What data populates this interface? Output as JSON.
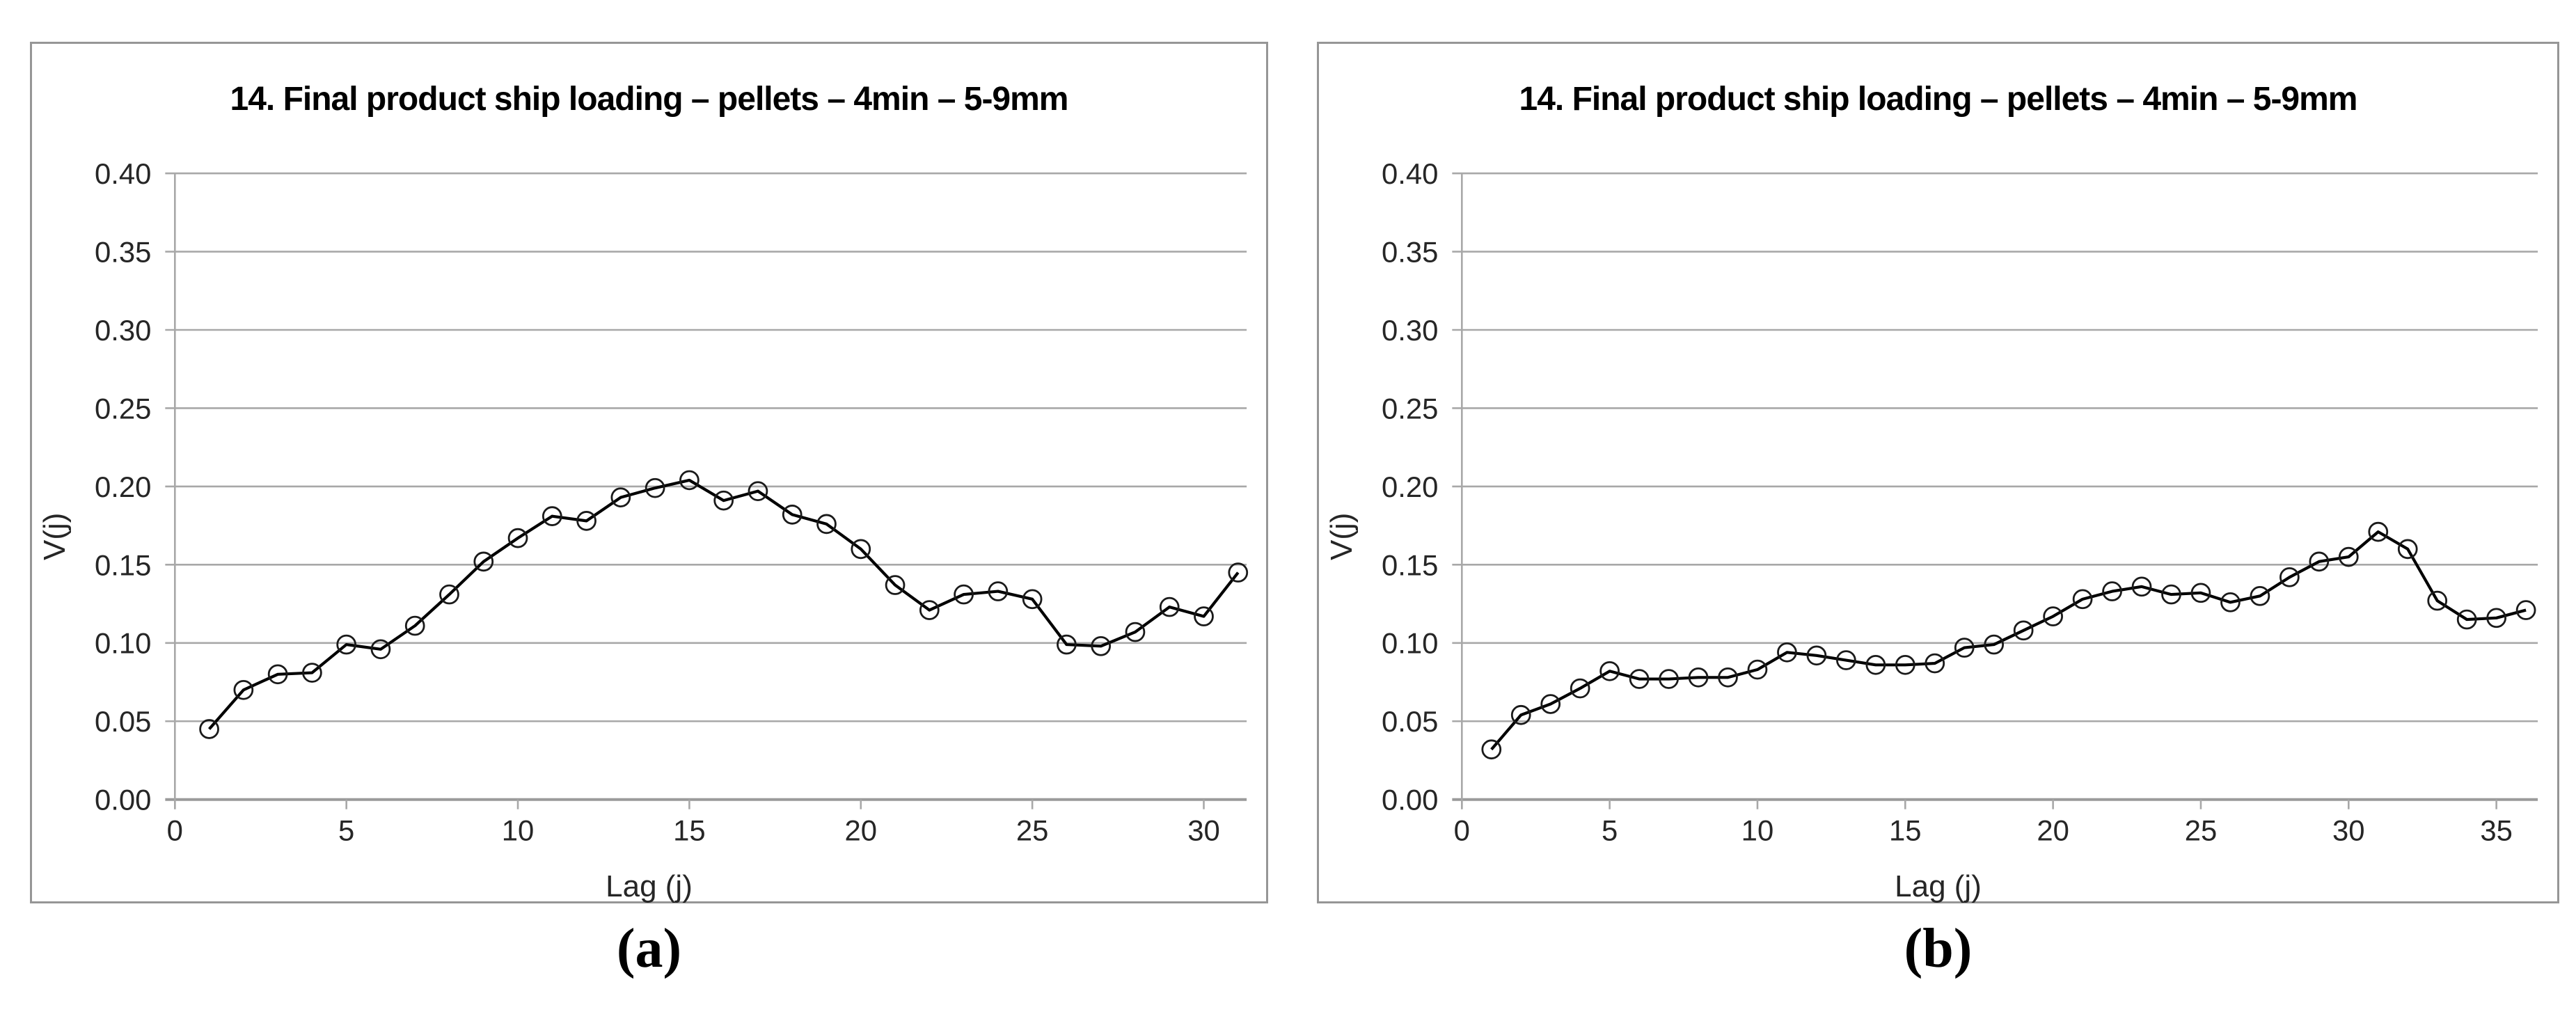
{
  "figure": {
    "panels": [
      {
        "id": "a",
        "title": "14. Final product ship loading – pellets – 4min – 5-9mm",
        "y_axis_label": "V(j)",
        "x_axis_label": "Lag (j)",
        "caption": "(a)"
      },
      {
        "id": "b",
        "title": "14. Final product ship loading – pellets – 4min – 5-9mm",
        "y_axis_label": "V(j)",
        "x_axis_label": "Lag (j)",
        "caption": "(b)"
      }
    ]
  },
  "colors": {
    "background": "#ffffff",
    "panel_border": "#969696",
    "gridline": "#a8a8a8",
    "zero_line": "#9a9a9a",
    "axis_line": "#a8a8a8",
    "tick_label": "#262626",
    "title": "#000000",
    "series_line": "#000000",
    "marker_stroke": "#1a1a1a"
  },
  "chart_data": [
    {
      "type": "line",
      "title": "14. Final product ship loading – pellets – 4min – 5-9mm",
      "xlabel": "Lag (j)",
      "ylabel": "V(j)",
      "marker": "open-circle",
      "legend": "none",
      "grid": "horizontal",
      "xlim": [
        0,
        31.25
      ],
      "ylim": [
        0,
        0.4
      ],
      "x_ticks": [
        0,
        5,
        10,
        15,
        20,
        25,
        30
      ],
      "y_ticks": [
        0.0,
        0.05,
        0.1,
        0.15,
        0.2,
        0.25,
        0.3,
        0.35,
        0.4
      ],
      "y_tick_labels": [
        "0.00",
        "0.05",
        "0.10",
        "0.15",
        "0.20",
        "0.25",
        "0.30",
        "0.35",
        "0.40"
      ],
      "x": [
        1,
        2,
        3,
        4,
        5,
        6,
        7,
        8,
        9,
        10,
        11,
        12,
        13,
        14,
        15,
        16,
        17,
        18,
        19,
        20,
        21,
        22,
        23,
        24,
        25,
        26,
        27,
        28,
        29,
        30,
        31
      ],
      "y": [
        0.045,
        0.07,
        0.08,
        0.081,
        0.099,
        0.096,
        0.111,
        0.131,
        0.152,
        0.167,
        0.181,
        0.178,
        0.193,
        0.199,
        0.204,
        0.191,
        0.197,
        0.182,
        0.176,
        0.16,
        0.137,
        0.121,
        0.131,
        0.133,
        0.128,
        0.099,
        0.098,
        0.107,
        0.123,
        0.117,
        0.145
      ]
    },
    {
      "type": "line",
      "title": "14. Final product ship loading – pellets – 4min – 5-9mm",
      "xlabel": "Lag (j)",
      "ylabel": "V(j)",
      "marker": "open-circle",
      "legend": "none",
      "grid": "horizontal",
      "xlim": [
        0,
        36.4
      ],
      "ylim": [
        0,
        0.4
      ],
      "x_ticks": [
        0,
        5,
        10,
        15,
        20,
        25,
        30,
        35
      ],
      "y_ticks": [
        0.0,
        0.05,
        0.1,
        0.15,
        0.2,
        0.25,
        0.3,
        0.35,
        0.4
      ],
      "y_tick_labels": [
        "0.00",
        "0.05",
        "0.10",
        "0.15",
        "0.20",
        "0.25",
        "0.30",
        "0.35",
        "0.40"
      ],
      "x": [
        1,
        2,
        3,
        4,
        5,
        6,
        7,
        8,
        9,
        10,
        11,
        12,
        13,
        14,
        15,
        16,
        17,
        18,
        19,
        20,
        21,
        22,
        23,
        24,
        25,
        26,
        27,
        28,
        29,
        30,
        31,
        32,
        33,
        34,
        35,
        36
      ],
      "y": [
        0.032,
        0.054,
        0.061,
        0.071,
        0.082,
        0.077,
        0.077,
        0.078,
        0.078,
        0.083,
        0.094,
        0.092,
        0.089,
        0.086,
        0.086,
        0.087,
        0.097,
        0.099,
        0.108,
        0.117,
        0.128,
        0.133,
        0.136,
        0.131,
        0.132,
        0.126,
        0.13,
        0.142,
        0.152,
        0.155,
        0.171,
        0.16,
        0.127,
        0.115,
        0.116,
        0.121
      ]
    }
  ]
}
